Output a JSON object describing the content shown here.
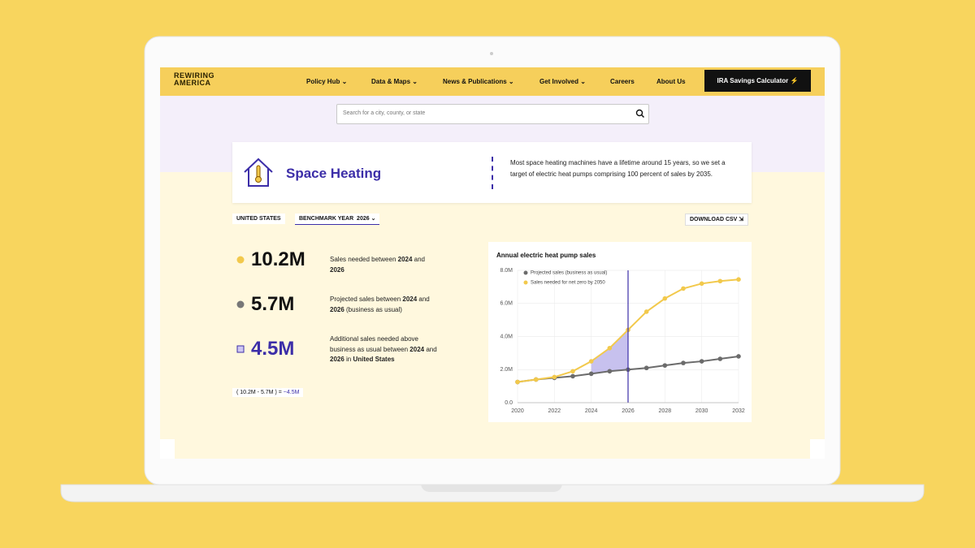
{
  "nav": {
    "logo": [
      "REWIRING",
      "AMERICA"
    ],
    "items": [
      "Policy Hub",
      "Data & Maps",
      "News & Publications",
      "Get Involved",
      "Careers",
      "About Us"
    ],
    "button": "IRA Savings Calculator"
  },
  "search": {
    "placeholder": "Search for a city, county, or state"
  },
  "header": {
    "title": "Space Heating",
    "description": "Most space heating machines have a lifetime around 15 years, so we set a target of electric heat pumps comprising 100 percent of sales by 2035."
  },
  "controls": {
    "location": "UNITED STATES",
    "benchmark_label": "BENCHMARK YEAR",
    "benchmark_year": "2026",
    "download": "DOWNLOAD CSV"
  },
  "stats": [
    {
      "value": "10.2M",
      "text": [
        "Sales needed between ",
        "2024",
        " and ",
        "2026"
      ]
    },
    {
      "value": "5.7M",
      "text": [
        "Projected sales between ",
        "2024",
        " and ",
        "2026",
        " (business as usual)"
      ]
    },
    {
      "value": "4.5M",
      "text": [
        "Additional sales needed above business as usual between ",
        "2024",
        " and ",
        "2026",
        " in ",
        "United States"
      ]
    }
  ],
  "formula": [
    "( 10.2M - 5.7M ) =",
    "~4.5M"
  ],
  "chart_data": {
    "type": "line",
    "title": "Annual electric heat pump sales",
    "x": [
      2020,
      2021,
      2022,
      2023,
      2024,
      2025,
      2026,
      2027,
      2028,
      2029,
      2030,
      2031,
      2032
    ],
    "series": [
      {
        "name": "Projected sales (business as usual)",
        "color": "#6b6b6b",
        "values": [
          1.25,
          1.4,
          1.5,
          1.6,
          1.75,
          1.9,
          2.0,
          2.1,
          2.25,
          2.4,
          2.5,
          2.65,
          2.8
        ]
      },
      {
        "name": "Sales needed for net zero by 2050",
        "color": "#f2c94c",
        "values": [
          1.25,
          1.4,
          1.55,
          1.9,
          2.5,
          3.3,
          4.4,
          5.5,
          6.3,
          6.9,
          7.2,
          7.35,
          7.45
        ]
      }
    ],
    "highlight_range": [
      2024,
      2026
    ],
    "highlight_color": "#b9b1ea",
    "marker_color": "#3c2ea8",
    "xlim": [
      2020,
      2032
    ],
    "xticks": [
      2020,
      2022,
      2024,
      2026,
      2028,
      2030,
      2032
    ],
    "ylim": [
      0,
      8
    ],
    "yticks": [
      {
        "value": 0,
        "label": "0.0"
      },
      {
        "value": 2,
        "label": "2.0M"
      },
      {
        "value": 4,
        "label": "4.0M"
      },
      {
        "value": 6,
        "label": "6.0M"
      },
      {
        "value": 8,
        "label": "8.0M"
      }
    ],
    "grid": true
  }
}
